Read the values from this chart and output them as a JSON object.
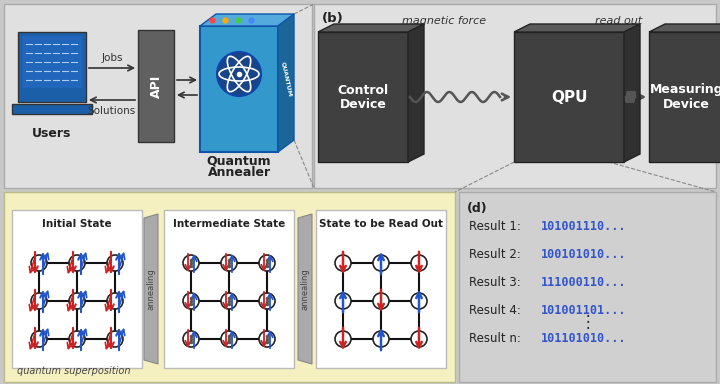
{
  "bg_color": "#c8c8c8",
  "top_panel_bg": "#e0e0e0",
  "bottom_left_bg": "#f5f0c0",
  "bottom_right_bg": "#d0d0d0",
  "users_label": "Users",
  "api_label": "API",
  "jobs_label": "Jobs",
  "solutions_label": "Solutions",
  "qa_label1": "Quantum",
  "qa_label2": "Annealer",
  "control_label1": "Control",
  "control_label2": "Device",
  "qpu_label": "QPU",
  "measuring_label1": "Measuring",
  "measuring_label2": "Device",
  "mag_force_label": "magnetic force",
  "read_out_label": "read out",
  "b_label": "(b)",
  "initial_state_label": "Initial State",
  "intermediate_state_label": "Intermediate State",
  "state_read_label": "State to be Read Out",
  "annealing_label": "annealing",
  "quantum_super_label": "quantum superposition",
  "d_label": "(d)",
  "results": [
    {
      "label": "Result 1: ",
      "value": "101001110..."
    },
    {
      "label": "Result 2: ",
      "value": "100101010..."
    },
    {
      "label": "Result 3: ",
      "value": "111000110..."
    },
    {
      "label": "Result 4: ",
      "value": "101001101..."
    },
    {
      "label": "Result n: ",
      "value": "101101010..."
    }
  ],
  "result_color": "#3355cc",
  "dark_box_color": "#404040",
  "dark_box_top": "#5a5a5a",
  "dark_box_right": "#303030",
  "blue_qa_color": "#3399cc",
  "blue_qa_side": "#2277aa",
  "api_box_color": "#606060",
  "red_spin_color": "#cc2222",
  "blue_spin_color": "#2255cc",
  "laptop_screen": "#1a5fa8",
  "laptop_body": "#1a5fa8"
}
